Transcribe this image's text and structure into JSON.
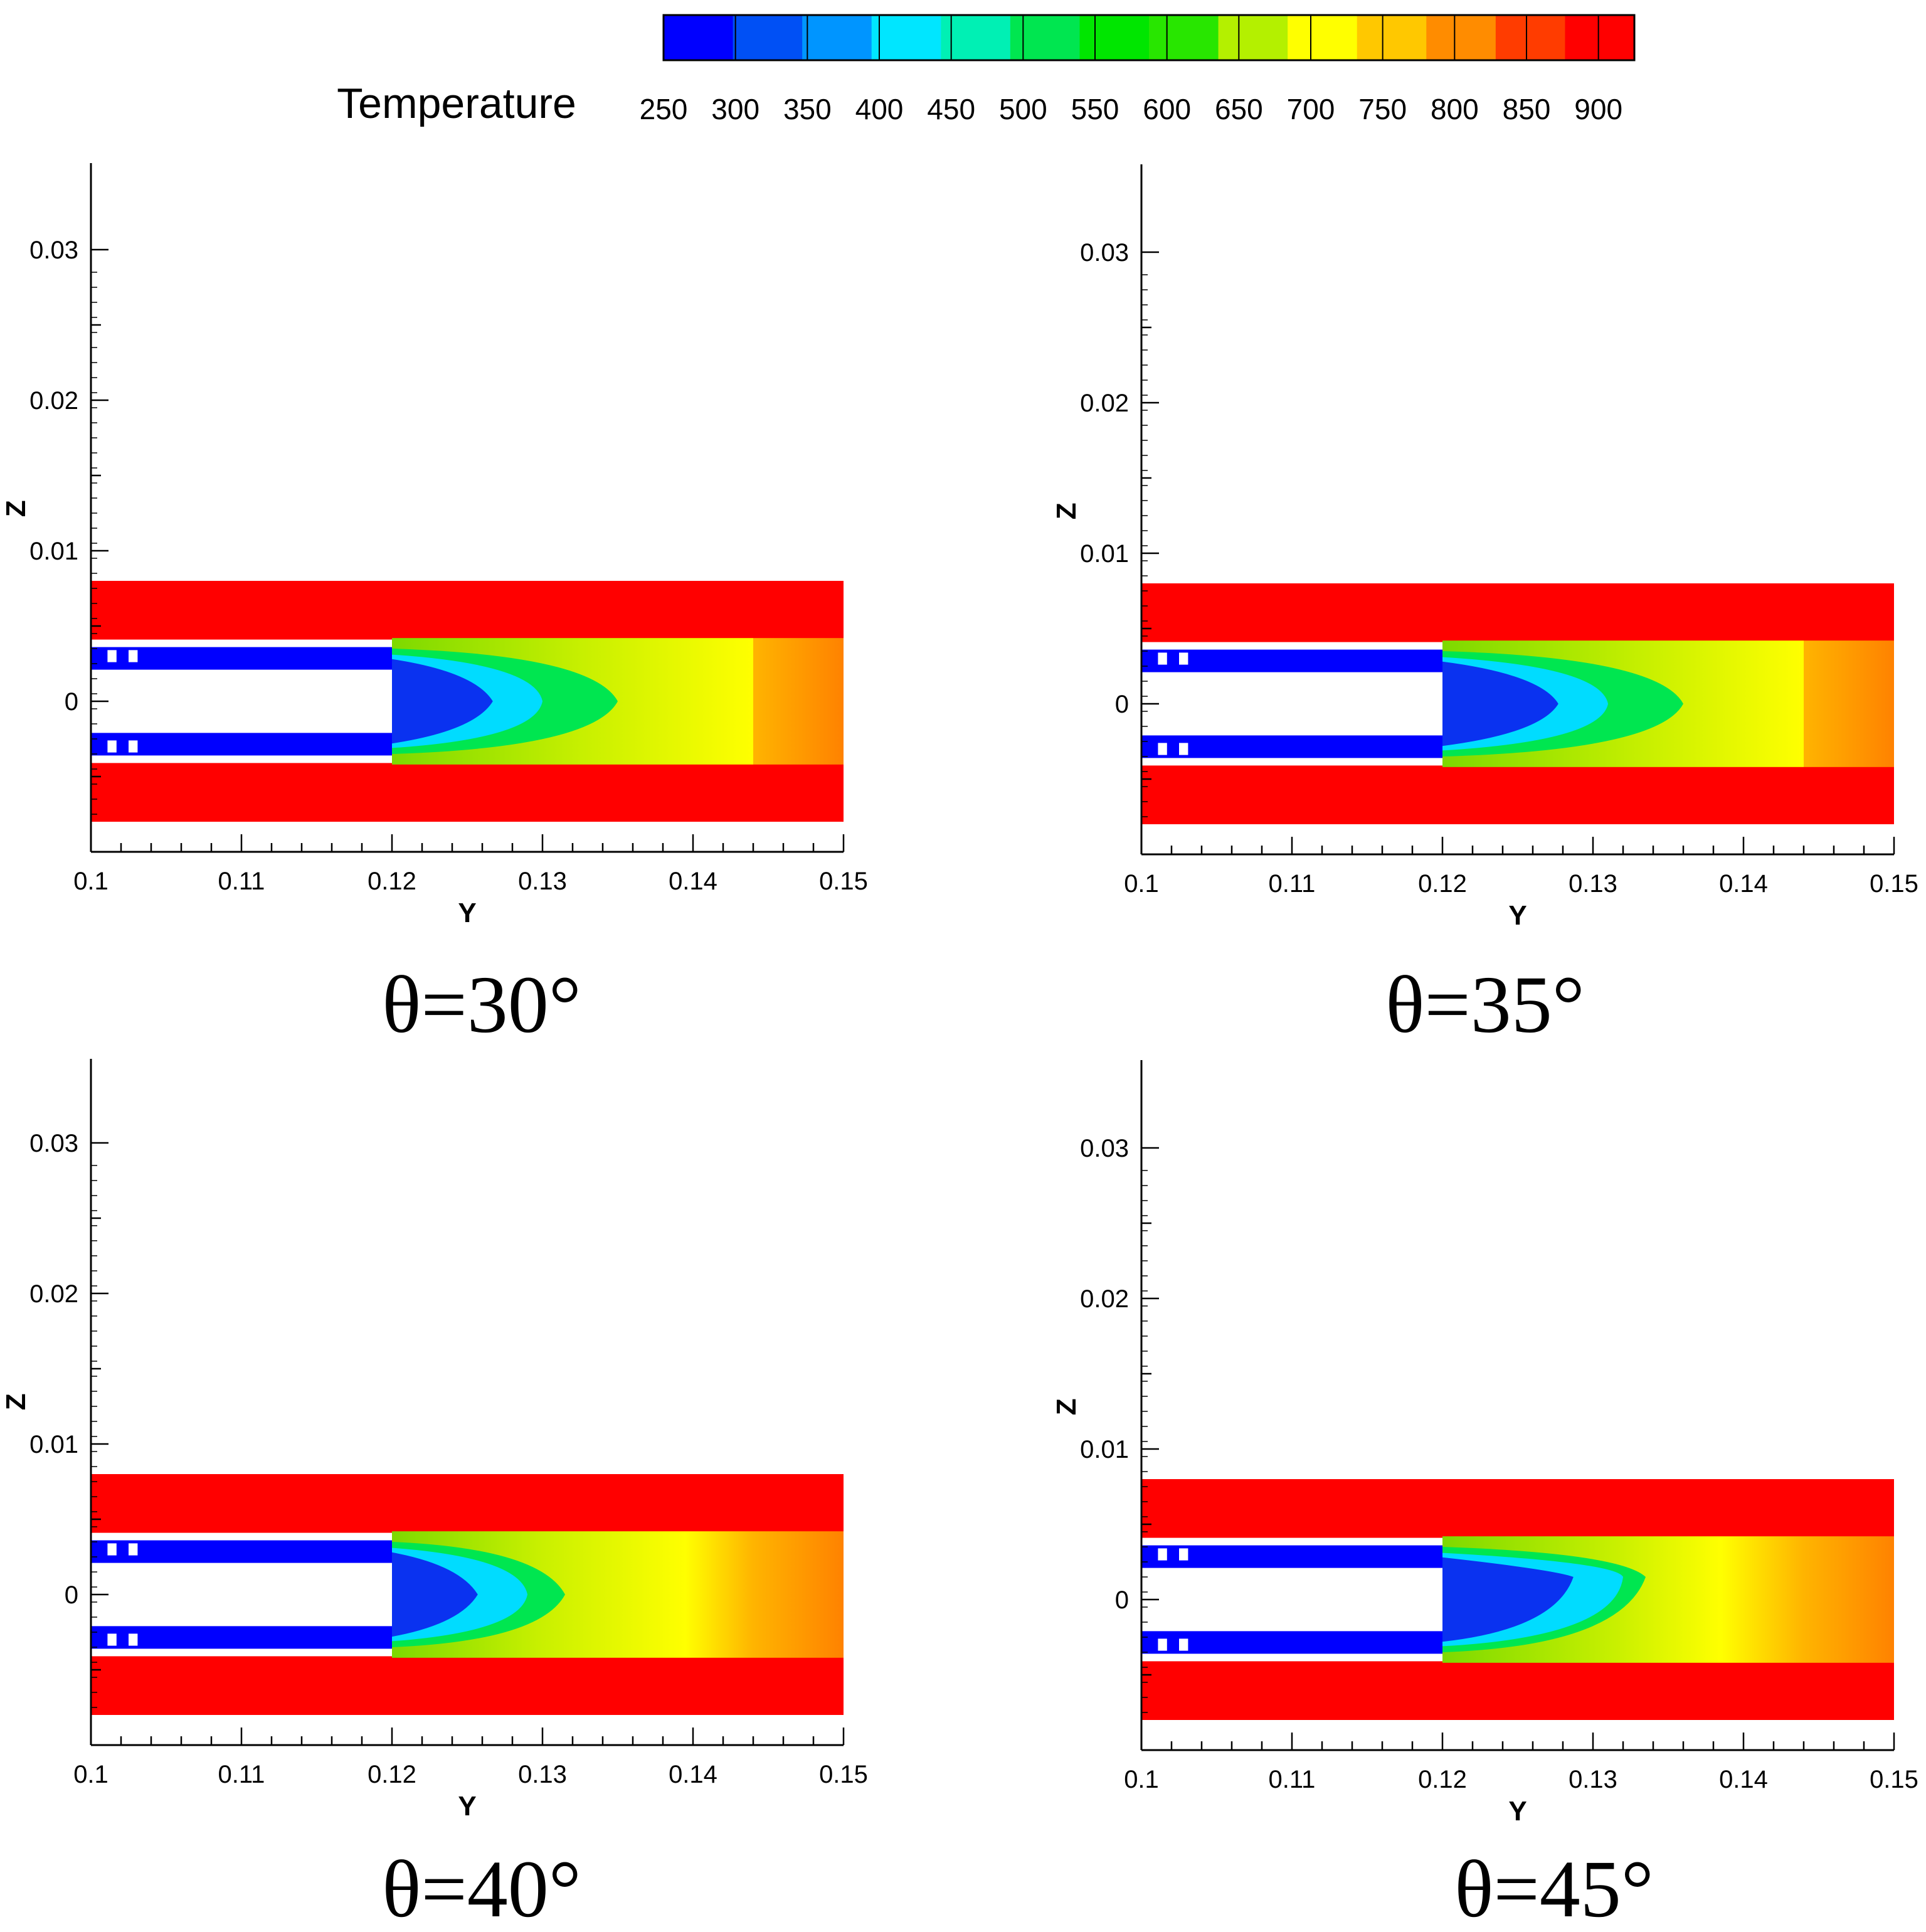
{
  "chart_data": {
    "type": "heatmap",
    "colorbar": {
      "title": "Temperature",
      "ticks": [
        250,
        300,
        350,
        400,
        450,
        500,
        550,
        600,
        650,
        700,
        750,
        800,
        850,
        900
      ],
      "tick_labels": [
        "250",
        "300",
        "350",
        "400",
        "450",
        "500",
        "550",
        "600",
        "650",
        "700",
        "750",
        "800",
        "850",
        "900"
      ],
      "range": [
        250,
        925
      ],
      "colors": [
        "#0000ff",
        "#0050f5",
        "#0095ff",
        "#00e6ff",
        "#00f0b4",
        "#00e650",
        "#00e600",
        "#28e600",
        "#b4f000",
        "#ffff00",
        "#ffc800",
        "#ff8c00",
        "#ff3c00",
        "#ff0000"
      ]
    },
    "panels": [
      {
        "caption": "θ=30°",
        "xlabel": "Y",
        "ylabel": "Z",
        "xlim": [
          0.1,
          0.15
        ],
        "ylim": [
          -0.01,
          0.035
        ],
        "xticks": [
          0.1,
          0.11,
          0.12,
          0.13,
          0.14,
          0.15
        ],
        "xtick_labels": [
          "0.1",
          "0.11",
          "0.12",
          "0.13",
          "0.14",
          "0.15"
        ],
        "yticks": [
          0,
          0.01,
          0.02,
          0.03
        ],
        "ytick_labels": [
          "0",
          "0.01",
          "0.02",
          "0.03"
        ],
        "core_tip_y": 0.1255,
        "green_tip_y": 0.135,
        "yellow_tip_y": 0.144,
        "tilt": 0.0
      },
      {
        "caption": "θ=35°",
        "xlabel": "Y",
        "ylabel": "Z",
        "xlim": [
          0.1,
          0.15
        ],
        "ylim": [
          -0.01,
          0.035
        ],
        "xticks": [
          0.1,
          0.11,
          0.12,
          0.13,
          0.14,
          0.15
        ],
        "xtick_labels": [
          "0.1",
          "0.11",
          "0.12",
          "0.13",
          "0.14",
          "0.15"
        ],
        "yticks": [
          0,
          0.01,
          0.02,
          0.03
        ],
        "ytick_labels": [
          "0",
          "0.01",
          "0.02",
          "0.03"
        ],
        "core_tip_y": 0.1265,
        "green_tip_y": 0.136,
        "yellow_tip_y": 0.144,
        "tilt": 0.0
      },
      {
        "caption": "θ=40°",
        "xlabel": "Y",
        "ylabel": "Z",
        "xlim": [
          0.1,
          0.15
        ],
        "ylim": [
          -0.01,
          0.035
        ],
        "xticks": [
          0.1,
          0.11,
          0.12,
          0.13,
          0.14,
          0.15
        ],
        "xtick_labels": [
          "0.1",
          "0.11",
          "0.12",
          "0.13",
          "0.14",
          "0.15"
        ],
        "yticks": [
          0,
          0.01,
          0.02,
          0.03
        ],
        "ytick_labels": [
          "0",
          "0.01",
          "0.02",
          "0.03"
        ],
        "core_tip_y": 0.1245,
        "green_tip_y": 0.1315,
        "yellow_tip_y": 0.1395,
        "tilt": 0.0
      },
      {
        "caption": "θ=45°",
        "xlabel": "Y",
        "ylabel": "Z",
        "xlim": [
          0.1,
          0.15
        ],
        "ylim": [
          -0.01,
          0.035
        ],
        "xticks": [
          0.1,
          0.11,
          0.12,
          0.13,
          0.14,
          0.15
        ],
        "xtick_labels": [
          "0.1",
          "0.11",
          "0.12",
          "0.13",
          "0.14",
          "0.15"
        ],
        "yticks": [
          0,
          0.01,
          0.02,
          0.03
        ],
        "ytick_labels": [
          "0",
          "0.01",
          "0.02",
          "0.03"
        ],
        "core_tip_y": 0.1275,
        "green_tip_y": 0.1335,
        "yellow_tip_y": 0.1385,
        "tilt": -0.0015
      }
    ]
  }
}
